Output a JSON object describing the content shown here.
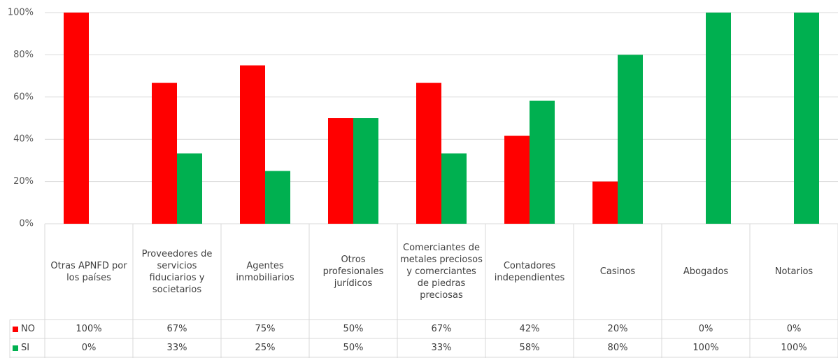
{
  "chart_data": {
    "type": "bar",
    "categories": [
      "Otras APNFD por los países",
      "Proveedores de servicios fiduciarios y societarios",
      "Agentes inmobiliarios",
      "Otros profesionales jurídicos",
      "Comerciantes de metales preciosos y comerciantes de piedras preciosas",
      "Contadores independientes",
      "Casinos",
      "Abogados",
      "Notarios"
    ],
    "series": [
      {
        "name": "NO",
        "color": "#ff0000",
        "values": [
          100,
          66.7,
          75,
          50,
          66.7,
          41.7,
          20,
          0,
          0
        ],
        "value_labels": [
          "100%",
          "67%",
          "75%",
          "50%",
          "67%",
          "42%",
          "20%",
          "0%",
          "0%"
        ]
      },
      {
        "name": "SI",
        "color": "#00b050",
        "values": [
          0,
          33.3,
          25,
          50,
          33.3,
          58.3,
          80,
          100,
          100
        ],
        "value_labels": [
          "0%",
          "33%",
          "25%",
          "50%",
          "33%",
          "58%",
          "80%",
          "100%",
          "100%"
        ]
      }
    ],
    "ylim": [
      0,
      100
    ],
    "yticks": [
      {
        "value": 0,
        "label": "0%"
      },
      {
        "value": 20,
        "label": "20%"
      },
      {
        "value": 40,
        "label": "40%"
      },
      {
        "value": 60,
        "label": "60%"
      },
      {
        "value": 80,
        "label": "80%"
      },
      {
        "value": 100,
        "label": "100%"
      }
    ],
    "grid": true
  }
}
